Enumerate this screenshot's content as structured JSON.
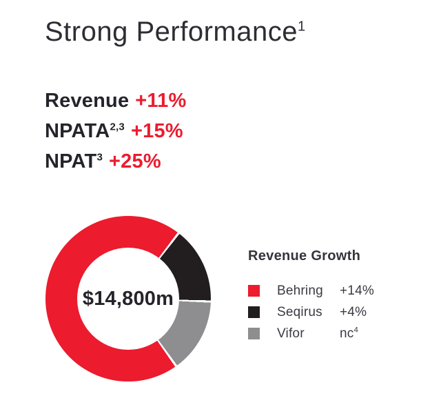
{
  "title": {
    "text": "Strong Performance",
    "sup": "1"
  },
  "metrics": [
    {
      "label": "Revenue",
      "label_sup": "",
      "value": "+11%"
    },
    {
      "label": "NPATA",
      "label_sup": "2,3",
      "value": "+15%"
    },
    {
      "label": "NPAT",
      "label_sup": "3",
      "value": "+25%"
    }
  ],
  "colors": {
    "accent_red": "#EC1B2E",
    "dark_text": "#26242B",
    "legend_text": "#3A3A42",
    "background": "#FFFFFF"
  },
  "chart_data": {
    "type": "pie",
    "subtype": "donut",
    "title": "Revenue Growth",
    "center_label": "$14,800m",
    "start_angle_deg": 144.5,
    "gap_deg": 1.6,
    "legend_position": "right",
    "segments": [
      {
        "name": "Behring",
        "growth": "+14%",
        "growth_sup": "",
        "share_pct": 70.3,
        "color": "#EC1B2E"
      },
      {
        "name": "Seqirus",
        "growth": "+4%",
        "growth_sup": "",
        "share_pct": 15.1,
        "color": "#221E20"
      },
      {
        "name": "Vifor",
        "growth": "nc",
        "growth_sup": "4",
        "share_pct": 14.6,
        "color": "#8E8E90"
      }
    ]
  }
}
